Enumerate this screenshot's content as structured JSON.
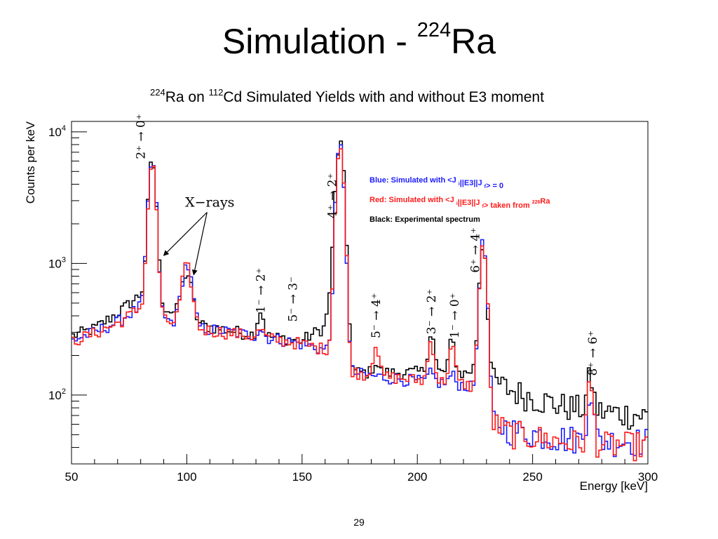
{
  "slide": {
    "title": "Simulation - ",
    "title_sup": "224",
    "title_end": "Ra",
    "page_number": "29"
  },
  "chart_data": {
    "type": "line",
    "title_parts": [
      {
        "sup": "224"
      },
      {
        "text": "Ra on "
      },
      {
        "sup": "112"
      },
      {
        "text": "Cd Simulated Yields with and without E3 moment"
      }
    ],
    "xlabel": "Energy [keV]",
    "ylabel": "Counts per keV",
    "xlim": [
      50,
      300
    ],
    "ylim": [
      30,
      12000
    ],
    "y_scale": "log",
    "x_ticks": [
      50,
      100,
      150,
      200,
      250,
      300
    ],
    "y_ticks": [
      {
        "value": 100,
        "base": "10",
        "exp": "2"
      },
      {
        "value": 1000,
        "base": "10",
        "exp": "3"
      },
      {
        "value": 10000,
        "base": "10",
        "exp": "4"
      }
    ],
    "grid": false,
    "legend_position": "upper-right, inside plot",
    "legend": [
      {
        "color": "#1a1aff",
        "parts": [
          {
            "text": "Blue: Simulated with <J"
          },
          {
            "sub": "i"
          },
          {
            "text": "||E3||J"
          },
          {
            "sub": "f"
          },
          {
            "text": "> = 0"
          }
        ]
      },
      {
        "color": "#ff1a1a",
        "parts": [
          {
            "text": "Red: Simulated with <J"
          },
          {
            "sub": "i"
          },
          {
            "text": "||E3||J"
          },
          {
            "sub": "f"
          },
          {
            "text": "> taken from "
          },
          {
            "sup": "226"
          },
          {
            "text": "Ra"
          }
        ]
      },
      {
        "color": "#000000",
        "parts": [
          {
            "text": "Black: Experimental spectrum"
          }
        ]
      }
    ],
    "annotations": [
      {
        "kind": "transition",
        "text": "2⁺ → 0⁺",
        "x": 80,
        "y": 6200
      },
      {
        "kind": "transition",
        "text": "1⁻ → 2⁺",
        "x": 132,
        "y": 420
      },
      {
        "kind": "transition",
        "text": "5⁻ → 3⁻",
        "x": 146,
        "y": 360
      },
      {
        "kind": "transition",
        "text": "4⁺ → 2⁺",
        "x": 163,
        "y": 2200
      },
      {
        "kind": "transition",
        "text": "5⁻ → 4⁺",
        "x": 182,
        "y": 270
      },
      {
        "kind": "transition",
        "text": "3⁻ → 2⁺",
        "x": 206,
        "y": 290
      },
      {
        "kind": "transition",
        "text": "1⁻ → 0⁺",
        "x": 216,
        "y": 270
      },
      {
        "kind": "transition",
        "text": "6⁺ → 4⁺",
        "x": 225,
        "y": 850
      },
      {
        "kind": "transition",
        "text": "8⁺ → 6⁺",
        "x": 276,
        "y": 140
      },
      {
        "kind": "label",
        "text": "X−rays",
        "x": 110,
        "y": 2700,
        "arrows": [
          {
            "x": 90,
            "y": 1150
          },
          {
            "x": 103,
            "y": 820
          }
        ]
      }
    ],
    "peaks": [
      {
        "center": 85,
        "width": 1.4,
        "black": 5200,
        "blue": 5200,
        "red": 5000
      },
      {
        "center": 100,
        "width": 2.0,
        "black": 480,
        "blue": 640,
        "red": 620
      },
      {
        "center": 132,
        "width": 1.2,
        "black": 160,
        "blue": 40,
        "red": 40
      },
      {
        "center": 166.5,
        "width": 1.4,
        "black": 7300,
        "blue": 7500,
        "red": 7500
      },
      {
        "center": 182,
        "width": 1.1,
        "black": 30,
        "blue": 0,
        "red": 110
      },
      {
        "center": 206,
        "width": 1.2,
        "black": 150,
        "blue": 20,
        "red": 130
      },
      {
        "center": 215,
        "width": 1.2,
        "black": 110,
        "blue": 20,
        "red": 110
      },
      {
        "center": 228.5,
        "width": 1.3,
        "black": 1250,
        "blue": 1350,
        "red": 1300
      },
      {
        "center": 275,
        "width": 1.2,
        "black": 60,
        "blue": 65,
        "red": 75
      }
    ],
    "series": [
      {
        "name": "Black",
        "color": "#000000",
        "background": [
          [
            50,
            280
          ],
          [
            60,
            320
          ],
          [
            70,
            420
          ],
          [
            80,
            580
          ],
          [
            85,
            760
          ],
          [
            90,
            470
          ],
          [
            100,
            360
          ],
          [
            110,
            330
          ],
          [
            130,
            285
          ],
          [
            150,
            260
          ],
          [
            160,
            330
          ],
          [
            164,
            1100
          ],
          [
            168,
            900
          ],
          [
            172,
            150
          ],
          [
            180,
            148
          ],
          [
            190,
            148
          ],
          [
            205,
            150
          ],
          [
            220,
            145
          ],
          [
            226,
            160
          ],
          [
            232,
            130
          ],
          [
            240,
            110
          ],
          [
            260,
            85
          ],
          [
            280,
            75
          ],
          [
            300,
            70
          ]
        ]
      },
      {
        "name": "Blue",
        "color": "#1a1aff",
        "background": [
          [
            50,
            260
          ],
          [
            60,
            300
          ],
          [
            70,
            360
          ],
          [
            80,
            470
          ],
          [
            84,
            760
          ],
          [
            90,
            380
          ],
          [
            100,
            330
          ],
          [
            120,
            300
          ],
          [
            140,
            265
          ],
          [
            150,
            245
          ],
          [
            160,
            220
          ],
          [
            166,
            270
          ],
          [
            170,
            150
          ],
          [
            180,
            140
          ],
          [
            200,
            128
          ],
          [
            220,
            120
          ],
          [
            226,
            110
          ],
          [
            232,
            65
          ],
          [
            240,
            55
          ],
          [
            260,
            48
          ],
          [
            280,
            45
          ],
          [
            300,
            45
          ]
        ]
      },
      {
        "name": "Red",
        "color": "#ff1a1a",
        "background": [
          [
            50,
            255
          ],
          [
            60,
            295
          ],
          [
            70,
            350
          ],
          [
            80,
            460
          ],
          [
            84,
            740
          ],
          [
            90,
            370
          ],
          [
            100,
            325
          ],
          [
            120,
            295
          ],
          [
            140,
            262
          ],
          [
            150,
            245
          ],
          [
            160,
            222
          ],
          [
            166,
            270
          ],
          [
            170,
            152
          ],
          [
            180,
            142
          ],
          [
            200,
            130
          ],
          [
            220,
            122
          ],
          [
            226,
            112
          ],
          [
            232,
            63
          ],
          [
            240,
            52
          ],
          [
            260,
            45
          ],
          [
            280,
            42
          ],
          [
            300,
            42
          ]
        ]
      }
    ]
  }
}
